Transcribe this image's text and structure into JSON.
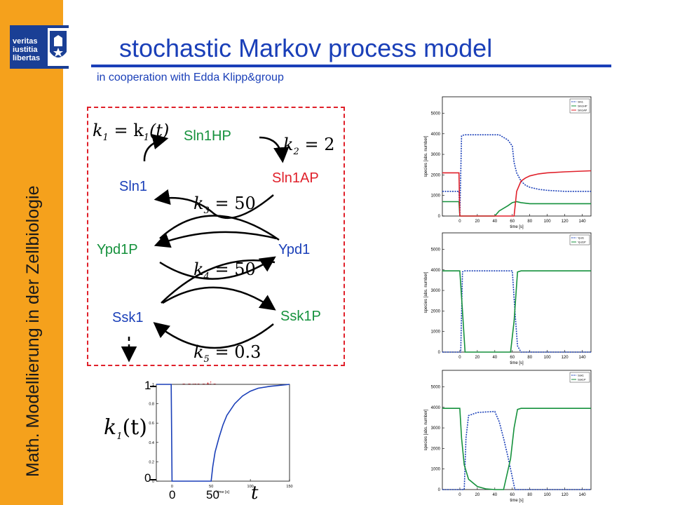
{
  "sidebar": {
    "vertical_title": "Math. Modellierung in der Zellbiologie",
    "logo_text": "veritas\niustitia\nlibertas"
  },
  "header": {
    "title": "stochastic Markov process model",
    "subtitle": "in cooperation with Edda Klipp&group"
  },
  "network": {
    "species": {
      "sln1hp": "Sln1HP",
      "sln1": "Sln1",
      "sln1ap": "Sln1AP",
      "ypd1p": "Ypd1P",
      "ypd1": "Ypd1",
      "ssk1": "Ssk1",
      "ssk1p": "Ssk1P"
    },
    "rates": {
      "k1": {
        "var": "k",
        "sub": "1",
        "rhs_text": "= k",
        "rhs_sub": "1",
        "rhs_arg": "(t)"
      },
      "k2": {
        "var": "k",
        "sub": "2",
        "value": "= 2"
      },
      "k3": {
        "var": "k",
        "sub": "3",
        "value": "= 50"
      },
      "k4": {
        "var": "k",
        "sub": "4",
        "value": "= 50"
      },
      "k5": {
        "var": "k",
        "sub": "5",
        "value": "= 0.3"
      }
    }
  },
  "k1_plot": {
    "ylabel_var": "k",
    "ylabel_sub": "1",
    "ylabel_arg": "(t)",
    "y_ticks_big": [
      "1",
      "0"
    ],
    "x_ticks_big": [
      "0",
      "50"
    ],
    "x_var": "t",
    "annotation": "osmotic\nshock",
    "axis_small_label": "time [s]",
    "inner_x_ticks": [
      "0",
      "50",
      "100",
      "150"
    ],
    "inner_y_ticks": [
      "0",
      "0.2",
      "0.4",
      "0.6",
      "0.8",
      "1"
    ],
    "accent": "#1a3fb8"
  },
  "chart_data": [
    {
      "type": "line",
      "xlabel": "time [s]",
      "ylabel": "species [abs. number]",
      "xlim": [
        -20,
        150
      ],
      "ylim": [
        0,
        5800
      ],
      "x_ticks": [
        0,
        20,
        40,
        60,
        80,
        100,
        120,
        140
      ],
      "y_ticks": [
        0,
        1000,
        2000,
        3000,
        4000,
        5000
      ],
      "legend": "top-right",
      "series": [
        {
          "name": "Sln1",
          "color": "#1a3fb8",
          "style": "dashed",
          "x": [
            -20,
            -1,
            0,
            2,
            5,
            45,
            55,
            60,
            62,
            65,
            70,
            75,
            80,
            90,
            100,
            120,
            150
          ],
          "y": [
            1200,
            1200,
            0,
            3900,
            3950,
            3950,
            3700,
            3400,
            2600,
            2100,
            1700,
            1500,
            1400,
            1300,
            1250,
            1200,
            1200
          ]
        },
        {
          "name": "Sln1HP",
          "color": "#15913c",
          "style": "solid",
          "x": [
            -20,
            -1,
            0,
            2,
            40,
            45,
            55,
            60,
            65,
            70,
            80,
            100,
            150
          ],
          "y": [
            700,
            700,
            0,
            0,
            0,
            250,
            500,
            650,
            700,
            650,
            600,
            600,
            600
          ]
        },
        {
          "name": "Sln1AP",
          "color": "#e0202a",
          "style": "solid",
          "x": [
            -20,
            -1,
            0,
            2,
            62,
            65,
            70,
            75,
            80,
            90,
            100,
            120,
            150
          ],
          "y": [
            2100,
            2100,
            0,
            0,
            0,
            1200,
            1700,
            1850,
            1950,
            2050,
            2100,
            2150,
            2200
          ]
        }
      ]
    },
    {
      "type": "line",
      "xlabel": "time [s]",
      "ylabel": "species [abs. number]",
      "xlim": [
        -20,
        150
      ],
      "ylim": [
        0,
        5800
      ],
      "x_ticks": [
        0,
        20,
        40,
        60,
        80,
        100,
        120,
        140
      ],
      "y_ticks": [
        0,
        1000,
        2000,
        3000,
        4000,
        5000
      ],
      "legend": "top-right",
      "series": [
        {
          "name": "Ypd1",
          "color": "#1a3fb8",
          "style": "dashed",
          "x": [
            -20,
            1,
            3,
            5,
            10,
            50,
            60,
            63,
            66,
            70,
            150
          ],
          "y": [
            0,
            0,
            3900,
            3950,
            3950,
            3950,
            3950,
            2000,
            300,
            0,
            0
          ]
        },
        {
          "name": "Ypd1P",
          "color": "#15913c",
          "style": "solid",
          "x": [
            -20,
            0,
            3,
            6,
            10,
            55,
            58,
            62,
            66,
            70,
            150
          ],
          "y": [
            3950,
            3950,
            2000,
            0,
            0,
            0,
            0,
            1500,
            3900,
            3950,
            3950
          ]
        }
      ]
    },
    {
      "type": "line",
      "xlabel": "time [s]",
      "ylabel": "species [abs. number]",
      "xlim": [
        -20,
        150
      ],
      "ylim": [
        0,
        5800
      ],
      "x_ticks": [
        0,
        20,
        40,
        60,
        80,
        100,
        120,
        140
      ],
      "y_ticks": [
        0,
        1000,
        2000,
        3000,
        4000,
        5000
      ],
      "legend": "top-right",
      "series": [
        {
          "name": "Ssk1",
          "color": "#1a3fb8",
          "style": "dashed",
          "x": [
            -20,
            5,
            7,
            10,
            20,
            40,
            45,
            50,
            55,
            60,
            63,
            66,
            150
          ],
          "y": [
            0,
            0,
            2500,
            3600,
            3750,
            3800,
            3300,
            2500,
            1600,
            600,
            0,
            0,
            0
          ]
        },
        {
          "name": "Ssk1P",
          "color": "#15913c",
          "style": "solid",
          "x": [
            -20,
            0,
            2,
            5,
            10,
            20,
            30,
            40,
            50,
            58,
            62,
            66,
            70,
            150
          ],
          "y": [
            3950,
            3950,
            2500,
            1200,
            500,
            150,
            30,
            0,
            0,
            1500,
            3000,
            3900,
            3950,
            3950
          ]
        }
      ]
    },
    {
      "type": "line",
      "xlabel": "time [s]",
      "ylabel": "",
      "xlim": [
        -20,
        150
      ],
      "ylim": [
        0,
        1
      ],
      "x_ticks": [
        0,
        50,
        100,
        150
      ],
      "y_ticks": [
        0,
        0.2,
        0.4,
        0.6,
        0.8,
        1
      ],
      "series": [
        {
          "color": "#1a3fb8",
          "style": "solid",
          "x": [
            -20,
            -1,
            0,
            50,
            52,
            55,
            60,
            65,
            70,
            80,
            90,
            100,
            110,
            125,
            150
          ],
          "y": [
            1,
            1,
            0,
            0,
            0.15,
            0.3,
            0.45,
            0.58,
            0.68,
            0.8,
            0.88,
            0.93,
            0.96,
            0.98,
            1
          ]
        }
      ]
    }
  ]
}
